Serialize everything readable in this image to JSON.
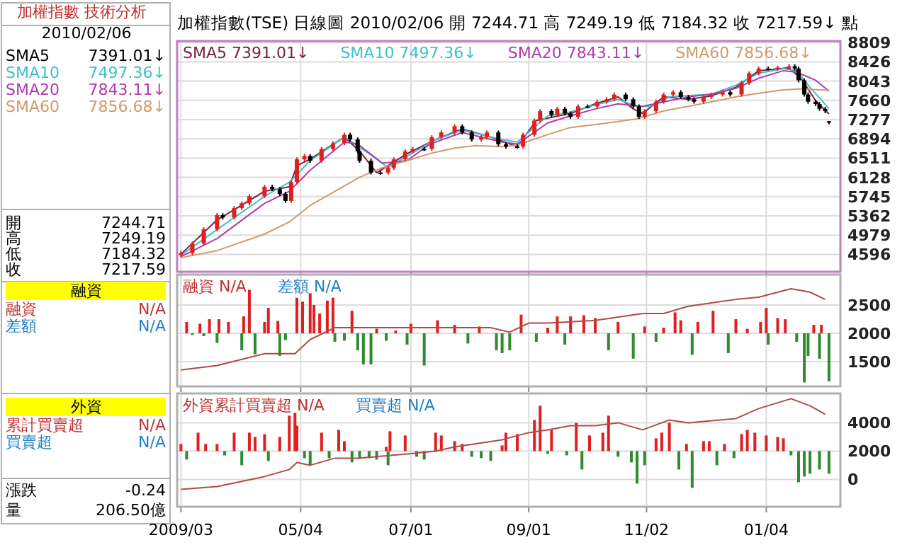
{
  "chart_data": [
    {
      "type": "other",
      "annotations": [
        "加權指數 技術分析",
        "2010/02/06",
        "SMA5",
        "7391.01↓",
        "SMA10",
        "7497.36↓",
        "SMA20",
        "7843.11↓",
        "SMA60",
        "7856.68↓",
        "開",
        "7244.71",
        "高",
        "7249.19",
        "低",
        "7184.32",
        "收",
        "7217.59",
        "融資",
        "融資",
        "N/A",
        "差額",
        "N/A",
        "外資",
        "累計買賣超",
        "N/A",
        "買賣超",
        "N/A",
        "漲跌",
        "-0.24",
        "量",
        "206.50億"
      ]
    },
    {
      "type": "candlestick",
      "title": "加權指數(TSE) 日線圖 2010/02/06 開 7244.71 高 7249.19 低 7184.32 收 7217.59↓ 點",
      "legend": "top left",
      "grid": true,
      "tick_labels": "y",
      "xlim": [
        "2009-02-28",
        "2010-02-12"
      ],
      "xticks": [
        {
          "value": "2009-03-02",
          "label": null
        },
        {
          "value": "2009-05-04",
          "label": null
        },
        {
          "value": "2009-07-01",
          "label": null
        },
        {
          "value": "2009-09-01",
          "label": null
        },
        {
          "value": "2009-11-02",
          "label": null
        },
        {
          "value": "2010-01-04",
          "label": null
        }
      ],
      "ylim": [
        4250,
        8840
      ],
      "yticks": [
        4596,
        4979,
        5362,
        5745,
        6128,
        6511,
        6894,
        7277,
        7660,
        8043,
        8426,
        8809
      ],
      "x": [
        "2009-03-02",
        "2009-03-08",
        "2009-03-14",
        "2009-03-21",
        "2009-03-24",
        "2009-03-30",
        "2009-04-03",
        "2009-04-07",
        "2009-04-15",
        "2009-04-19",
        "2009-04-23",
        "2009-04-26",
        "2009-04-29",
        "2009-05-02",
        "2009-05-06",
        "2009-05-09",
        "2009-05-15",
        "2009-05-21",
        "2009-05-27",
        "2009-05-30",
        "2009-06-03",
        "2009-06-04",
        "2009-06-10",
        "2009-06-15",
        "2009-06-19",
        "2009-06-22",
        "2009-06-28",
        "2009-07-02",
        "2009-07-08",
        "2009-07-12",
        "2009-07-17",
        "2009-07-24",
        "2009-07-28",
        "2009-08-02",
        "2009-08-07",
        "2009-08-10",
        "2009-08-16",
        "2009-08-20",
        "2009-08-26",
        "2009-08-29",
        "2009-09-04",
        "2009-09-07",
        "2009-09-13",
        "2009-09-16",
        "2009-09-20",
        "2009-09-23",
        "2009-09-27",
        "2009-10-02",
        "2009-10-07",
        "2009-10-12",
        "2009-10-16",
        "2009-10-22",
        "2009-10-26",
        "2009-10-29",
        "2009-11-01",
        "2009-11-07",
        "2009-11-11",
        "2009-11-16",
        "2009-11-20",
        "2009-11-24",
        "2009-11-27",
        "2009-12-02",
        "2009-12-06",
        "2009-12-12",
        "2009-12-16",
        "2009-12-22",
        "2009-12-26",
        "2009-12-31",
        "2010-01-05",
        "2010-01-10",
        "2010-01-16",
        "2010-01-19",
        "2010-01-21",
        "2010-01-24",
        "2010-01-26",
        "2010-01-30",
        "2010-02-01",
        "2010-02-04",
        "2010-02-06"
      ],
      "ohlc": [
        [
          4580,
          4664,
          4540,
          4624
        ],
        [
          4624,
          4852,
          4584,
          4812
        ],
        [
          4812,
          5134,
          4772,
          5094
        ],
        [
          5094,
          5417,
          5054,
          5377
        ],
        [
          5377,
          5417,
          5290,
          5330
        ],
        [
          5330,
          5558,
          5290,
          5518
        ],
        [
          5518,
          5652,
          5478,
          5612
        ],
        [
          5612,
          5793,
          5572,
          5753
        ],
        [
          5753,
          5981,
          5713,
          5941
        ],
        [
          5941,
          5981,
          5854,
          5894
        ],
        [
          5894,
          5934,
          5760,
          5800
        ],
        [
          5800,
          5840,
          5619,
          5659
        ],
        [
          5659,
          6075,
          5619,
          6035
        ],
        [
          6035,
          6526,
          5995,
          6486
        ],
        [
          6486,
          6592,
          6446,
          6552
        ],
        [
          6552,
          6592,
          6418,
          6458
        ],
        [
          6458,
          6733,
          6418,
          6693
        ],
        [
          6693,
          6846,
          6653,
          6806
        ],
        [
          6806,
          7015,
          6766,
          6975
        ],
        [
          6975,
          7015,
          6841,
          6881
        ],
        [
          6881,
          6921,
          6606,
          6646
        ],
        [
          6646,
          6686,
          6418,
          6458
        ],
        [
          6458,
          6498,
          6183,
          6223
        ],
        [
          6223,
          6263,
          6183,
          6223
        ],
        [
          6223,
          6357,
          6183,
          6317
        ],
        [
          6317,
          6526,
          6277,
          6486
        ],
        [
          6486,
          6686,
          6446,
          6646
        ],
        [
          6646,
          6733,
          6606,
          6693
        ],
        [
          6693,
          6733,
          6653,
          6693
        ],
        [
          6693,
          6968,
          6653,
          6928
        ],
        [
          6928,
          7062,
          6888,
          7022
        ],
        [
          7022,
          7185,
          6982,
          7145
        ],
        [
          7145,
          7185,
          6982,
          7022
        ],
        [
          7022,
          7062,
          6841,
          6881
        ],
        [
          6881,
          6968,
          6841,
          6928
        ],
        [
          6928,
          7062,
          6888,
          7022
        ],
        [
          7022,
          7062,
          6747,
          6787
        ],
        [
          6787,
          6827,
          6700,
          6740
        ],
        [
          6740,
          6780,
          6700,
          6740
        ],
        [
          6740,
          7015,
          6700,
          6975
        ],
        [
          6975,
          7297,
          6935,
          7257
        ],
        [
          7257,
          7485,
          7217,
          7445
        ],
        [
          7445,
          7485,
          7330,
          7370
        ],
        [
          7370,
          7532,
          7330,
          7492
        ],
        [
          7492,
          7532,
          7358,
          7398
        ],
        [
          7398,
          7438,
          7293,
          7333
        ],
        [
          7333,
          7579,
          7293,
          7539
        ],
        [
          7539,
          7579,
          7499,
          7539
        ],
        [
          7539,
          7673,
          7499,
          7633
        ],
        [
          7633,
          7721,
          7593,
          7681
        ],
        [
          7681,
          7815,
          7641,
          7775
        ],
        [
          7775,
          7815,
          7641,
          7681
        ],
        [
          7681,
          7721,
          7499,
          7539
        ],
        [
          7539,
          7579,
          7293,
          7333
        ],
        [
          7333,
          7485,
          7293,
          7445
        ],
        [
          7445,
          7673,
          7405,
          7633
        ],
        [
          7633,
          7815,
          7593,
          7775
        ],
        [
          7775,
          7862,
          7735,
          7822
        ],
        [
          7822,
          7862,
          7688,
          7728
        ],
        [
          7728,
          7768,
          7641,
          7681
        ],
        [
          7681,
          7721,
          7593,
          7633
        ],
        [
          7633,
          7768,
          7593,
          7728
        ],
        [
          7728,
          7815,
          7688,
          7775
        ],
        [
          7775,
          7862,
          7735,
          7822
        ],
        [
          7822,
          7862,
          7735,
          7775
        ],
        [
          7775,
          8050,
          7735,
          8010
        ],
        [
          8010,
          8238,
          7970,
          8198
        ],
        [
          8198,
          8332,
          8158,
          8292
        ],
        [
          8292,
          8332,
          8252,
          8292
        ],
        [
          8292,
          8351,
          8252,
          8311
        ],
        [
          8311,
          8379,
          8271,
          8339
        ],
        [
          8339,
          8379,
          8252,
          8292
        ],
        [
          8292,
          8332,
          8017,
          8057
        ],
        [
          8057,
          8097,
          7735,
          7775
        ],
        [
          7775,
          7815,
          7593,
          7633
        ],
        [
          7633,
          7673,
          7546,
          7586
        ],
        [
          7586,
          7626,
          7452,
          7492
        ],
        [
          7492,
          7532,
          7405,
          7445
        ],
        [
          7244.71,
          7249.19,
          7184.32,
          7217.59
        ]
      ],
      "colors": [
        "#e02020",
        "#e02020",
        "#e02020",
        "#e02020",
        "#000000",
        "#e02020",
        "#e02020",
        "#e02020",
        "#e02020",
        "#000000",
        "#000000",
        "#000000",
        "#e02020",
        "#e02020",
        "#e02020",
        "#000000",
        "#e02020",
        "#e02020",
        "#e02020",
        "#000000",
        "#000000",
        "#000000",
        "#000000",
        "#000000",
        "#e02020",
        "#e02020",
        "#e02020",
        "#e02020",
        "#000000",
        "#e02020",
        "#e02020",
        "#e02020",
        "#000000",
        "#000000",
        "#e02020",
        "#e02020",
        "#000000",
        "#000000",
        "#000000",
        "#e02020",
        "#e02020",
        "#e02020",
        "#000000",
        "#e02020",
        "#000000",
        "#000000",
        "#e02020",
        "#000000",
        "#e02020",
        "#e02020",
        "#e02020",
        "#000000",
        "#000000",
        "#000000",
        "#e02020",
        "#e02020",
        "#e02020",
        "#e02020",
        "#000000",
        "#000000",
        "#000000",
        "#e02020",
        "#e02020",
        "#e02020",
        "#000000",
        "#e02020",
        "#e02020",
        "#e02020",
        "#000000",
        "#e02020",
        "#e02020",
        "#000000",
        "#000000",
        "#000000",
        "#000000",
        "#000000",
        "#000000",
        "#000000",
        "#000000"
      ],
      "series": [
        {
          "name": "SMA5 7391.01↓",
          "type": "line",
          "color": "#7a2040",
          "x": [
            "2009-03-02",
            "2009-03-21",
            "2009-04-15",
            "2009-04-28",
            "2009-05-02",
            "2009-05-09",
            "2009-05-27",
            "2009-06-04",
            "2009-06-13",
            "2009-06-29",
            "2009-07-14",
            "2009-07-28",
            "2009-08-12",
            "2009-08-26",
            "2009-09-05",
            "2009-09-23",
            "2009-10-06",
            "2009-10-18",
            "2009-10-26",
            "2009-10-31",
            "2009-11-11",
            "2009-11-24",
            "2009-12-06",
            "2009-12-19",
            "2009-12-31",
            "2010-01-16",
            "2010-01-23",
            "2010-01-30",
            "2010-02-06"
          ],
          "values": [
            4600,
            5280,
            5850,
            5940,
            6360,
            6490,
            6930,
            6650,
            6220,
            6600,
            6880,
            7090,
            6930,
            6740,
            7260,
            7400,
            7590,
            7730,
            7490,
            7400,
            7730,
            7680,
            7750,
            7920,
            8250,
            8310,
            8060,
            7650,
            7391.01
          ]
        },
        {
          "name": "SMA10 7497.36↓",
          "type": "line",
          "color": "#40c0c8",
          "x": [
            "2009-03-02",
            "2009-03-21",
            "2009-04-15",
            "2009-04-28",
            "2009-05-09",
            "2009-05-27",
            "2009-06-09",
            "2009-06-19",
            "2009-06-29",
            "2009-07-14",
            "2009-07-28",
            "2009-08-18",
            "2009-08-26",
            "2009-09-11",
            "2009-09-23",
            "2009-10-06",
            "2009-10-18",
            "2009-10-28",
            "2009-11-04",
            "2009-11-14",
            "2009-12-06",
            "2009-12-19",
            "2009-12-31",
            "2010-01-13",
            "2010-01-20",
            "2010-01-27",
            "2010-02-06"
          ],
          "values": [
            4580,
            5090,
            5750,
            6030,
            6460,
            6930,
            6600,
            6320,
            6550,
            6880,
            7070,
            6880,
            6830,
            7350,
            7430,
            7570,
            7680,
            7540,
            7540,
            7730,
            7780,
            7960,
            8200,
            8290,
            8250,
            7920,
            7497.36
          ]
        },
        {
          "name": "SMA20 7843.11↓",
          "type": "line",
          "color": "#b03cb0",
          "x": [
            "2009-03-02",
            "2009-03-21",
            "2009-04-15",
            "2009-04-28",
            "2009-05-09",
            "2009-05-27",
            "2009-06-03",
            "2009-06-16",
            "2009-06-29",
            "2009-07-11",
            "2009-07-28",
            "2009-08-18",
            "2009-08-26",
            "2009-09-11",
            "2009-09-23",
            "2009-10-06",
            "2009-10-18",
            "2009-10-31",
            "2009-11-11",
            "2009-11-24",
            "2009-12-06",
            "2009-12-19",
            "2009-12-31",
            "2010-01-13",
            "2010-01-20",
            "2010-01-30",
            "2010-02-06"
          ],
          "values": [
            4550,
            4910,
            5610,
            5850,
            6270,
            6830,
            6790,
            6410,
            6460,
            6790,
            7020,
            6830,
            6790,
            7210,
            7350,
            7490,
            7590,
            7540,
            7630,
            7730,
            7780,
            7900,
            8100,
            8250,
            8220,
            8060,
            7843.11
          ]
        },
        {
          "name": "SMA60 7856.68↓",
          "type": "line",
          "color": "#d29a6a",
          "x": [
            "2009-03-02",
            "2009-03-21",
            "2009-04-15",
            "2009-04-28",
            "2009-05-09",
            "2009-05-22",
            "2009-06-04",
            "2009-06-16",
            "2009-06-29",
            "2009-07-11",
            "2009-07-24",
            "2009-08-04",
            "2009-08-18",
            "2009-08-26",
            "2009-09-11",
            "2009-09-23",
            "2009-10-06",
            "2009-10-18",
            "2009-10-28",
            "2009-11-11",
            "2009-11-24",
            "2009-12-06",
            "2009-12-19",
            "2009-12-31",
            "2010-01-13",
            "2010-01-23",
            "2010-02-06"
          ],
          "values": [
            4530,
            4670,
            5000,
            5240,
            5570,
            5850,
            6130,
            6320,
            6460,
            6600,
            6710,
            6760,
            6740,
            6770,
            6980,
            7120,
            7180,
            7240,
            7290,
            7450,
            7540,
            7630,
            7730,
            7800,
            7870,
            7890,
            7856.68
          ]
        }
      ]
    },
    {
      "type": "bar",
      "annotations": [
        "融資 N/A",
        "差額 N/A"
      ],
      "grid": true,
      "tick_labels": "y",
      "xlim": [
        "2009-02-28",
        "2010-02-12"
      ],
      "xticks": [
        {
          "value": "2009-03-02",
          "label": null
        },
        {
          "value": "2009-05-04",
          "label": null
        },
        {
          "value": "2009-07-01",
          "label": null
        },
        {
          "value": "2009-09-01",
          "label": null
        },
        {
          "value": "2009-11-02",
          "label": null
        },
        {
          "value": "2010-01-04",
          "label": null
        }
      ],
      "ylim": [
        1060,
        3040
      ],
      "yticks": [
        1500,
        2000,
        2500
      ],
      "series": [
        {
          "type": "bar",
          "color": "#e02020",
          "x": [
            "2009-03-05",
            "2009-03-12",
            "2009-03-17",
            "2009-03-22",
            "2009-03-27",
            "2009-04-04",
            "2009-04-07",
            "2009-04-15",
            "2009-04-17",
            "2009-04-22",
            "2009-05-02",
            "2009-05-05",
            "2009-05-09",
            "2009-05-11",
            "2009-05-14",
            "2009-05-18",
            "2009-05-21",
            "2009-05-31",
            "2009-06-13",
            "2009-06-23",
            "2009-07-01",
            "2009-07-15",
            "2009-07-24",
            "2009-08-06",
            "2009-08-28",
            "2009-09-11",
            "2009-09-16",
            "2009-09-23",
            "2009-09-30",
            "2009-10-06",
            "2009-10-18",
            "2009-11-01",
            "2009-11-11",
            "2009-11-17",
            "2009-11-20",
            "2009-11-29",
            "2009-12-07",
            "2009-12-19",
            "2009-12-25",
            "2010-01-01",
            "2010-01-04",
            "2010-01-10",
            "2010-01-14",
            "2010-01-29",
            "2010-02-02"
          ],
          "values": [
            200,
            170,
            250,
            250,
            200,
            300,
            770,
            200,
            450,
            220,
            630,
            560,
            710,
            500,
            350,
            580,
            630,
            400,
            80,
            50,
            170,
            230,
            150,
            120,
            330,
            100,
            300,
            300,
            320,
            270,
            200,
            120,
            100,
            370,
            230,
            200,
            400,
            250,
            80,
            200,
            450,
            270,
            250,
            150,
            150
          ],
          "base": [
            2000,
            2000,
            2000,
            2000,
            2000,
            2000,
            2000,
            2000,
            2000,
            2000,
            2000,
            2000,
            2000,
            2000,
            2000,
            2000,
            2000,
            2000,
            2000,
            2000,
            2000,
            2000,
            2000,
            2000,
            2000,
            2000,
            2000,
            2000,
            2000,
            2000,
            2000,
            2000,
            2000,
            2000,
            2000,
            2000,
            2000,
            2000,
            2000,
            2000,
            2000,
            2000,
            2000,
            2000,
            2000
          ]
        },
        {
          "type": "bar",
          "color": "#2e8b2e",
          "x": [
            "2009-03-08",
            "2009-03-14",
            "2009-03-21",
            "2009-04-03",
            "2009-04-10",
            "2009-04-23",
            "2009-04-26",
            "2009-05-22",
            "2009-05-27",
            "2009-06-03",
            "2009-06-06",
            "2009-06-10",
            "2009-06-18",
            "2009-06-29",
            "2009-07-08",
            "2009-07-31",
            "2009-08-15",
            "2009-08-18",
            "2009-08-22",
            "2009-09-05",
            "2009-09-20",
            "2009-10-13",
            "2009-10-26",
            "2009-11-07",
            "2009-11-26",
            "2009-12-15",
            "2010-01-05",
            "2010-01-20",
            "2010-01-24",
            "2010-01-26",
            "2010-02-01",
            "2010-02-06"
          ],
          "values": [
            -30,
            -50,
            -170,
            -300,
            -370,
            -400,
            -120,
            -150,
            -130,
            -300,
            -550,
            -550,
            -130,
            -200,
            -570,
            -180,
            -300,
            -350,
            -300,
            -150,
            -200,
            -300,
            -450,
            -150,
            -380,
            -350,
            -200,
            -150,
            -870,
            -400,
            -450,
            -850
          ],
          "base": [
            2000,
            2000,
            2000,
            2000,
            2000,
            2000,
            2000,
            2000,
            2000,
            2000,
            2000,
            2000,
            2000,
            2000,
            2000,
            2000,
            2000,
            2000,
            2000,
            2000,
            2000,
            2000,
            2000,
            2000,
            2000,
            2000,
            2000,
            2000,
            2000,
            2000,
            2000,
            2000
          ]
        },
        {
          "type": "line",
          "color": "#b04a4a",
          "x": [
            "2009-03-02",
            "2009-03-21",
            "2009-04-15",
            "2009-05-01",
            "2009-05-09",
            "2009-05-22",
            "2009-06-04",
            "2009-06-29",
            "2009-07-24",
            "2009-08-12",
            "2009-08-22",
            "2009-09-01",
            "2009-09-11",
            "2009-10-06",
            "2009-10-31",
            "2009-11-11",
            "2009-11-24",
            "2009-12-19",
            "2009-12-31",
            "2010-01-17",
            "2010-01-27",
            "2010-02-04"
          ],
          "values": [
            1350,
            1430,
            1640,
            1640,
            1890,
            2100,
            2100,
            2100,
            2100,
            2100,
            2020,
            2180,
            2180,
            2230,
            2350,
            2350,
            2480,
            2600,
            2640,
            2790,
            2730,
            2600
          ]
        }
      ]
    },
    {
      "type": "bar",
      "annotations": [
        "外資累計買賣超 N/A",
        "買賣超 N/A"
      ],
      "grid": true,
      "xlim": [
        "2009-02-28",
        "2010-02-12"
      ],
      "xticks": [
        {
          "value": "2009-03-02",
          "label": "2009/03"
        },
        {
          "value": "2009-05-04",
          "label": "05/04"
        },
        {
          "value": "2009-07-01",
          "label": "07/01"
        },
        {
          "value": "2009-09-01",
          "label": "09/01"
        },
        {
          "value": "2009-11-02",
          "label": "11/02"
        },
        {
          "value": "2010-01-04",
          "label": "01/04"
        }
      ],
      "ylim": [
        -1930,
        6070
      ],
      "yticks": [
        0,
        2000,
        4000
      ],
      "series": [
        {
          "type": "bar",
          "color": "#e02020",
          "x": [
            "2009-03-02",
            "2009-03-11",
            "2009-03-15",
            "2009-03-21",
            "2009-03-30",
            "2009-04-07",
            "2009-04-10",
            "2009-04-15",
            "2009-04-23",
            "2009-04-28",
            "2009-05-01",
            "2009-05-02",
            "2009-05-15",
            "2009-05-24",
            "2009-05-27",
            "2009-06-18",
            "2009-06-20",
            "2009-06-28",
            "2009-07-14",
            "2009-07-17",
            "2009-07-24",
            "2009-07-28",
            "2009-08-18",
            "2009-08-20",
            "2009-08-26",
            "2009-09-04",
            "2009-09-07",
            "2009-09-13",
            "2009-09-26",
            "2009-10-03",
            "2009-10-10",
            "2009-10-13",
            "2009-11-07",
            "2009-11-10",
            "2009-11-14",
            "2009-11-23",
            "2009-12-02",
            "2009-12-05",
            "2009-12-13",
            "2009-12-22",
            "2009-12-25",
            "2009-12-29",
            "2010-01-04",
            "2010-01-10",
            "2010-01-13"
          ],
          "values": [
            500,
            1300,
            500,
            500,
            1300,
            1300,
            1000,
            1200,
            1000,
            2500,
            2700,
            1800,
            1300,
            1500,
            700,
            300,
            1400,
            1100,
            1300,
            1100,
            700,
            500,
            400,
            1300,
            1200,
            2200,
            3200,
            1500,
            2000,
            1100,
            1300,
            2500,
            900,
            1300,
            2000,
            500,
            700,
            700,
            500,
            1200,
            1500,
            1300,
            1100,
            1000,
            900
          ],
          "base": [
            2000,
            2000,
            2000,
            2000,
            2000,
            2000,
            2000,
            2000,
            2000,
            2000,
            2000,
            2000,
            2000,
            2000,
            2000,
            2000,
            2000,
            2000,
            2000,
            2000,
            2000,
            2000,
            2000,
            2000,
            2000,
            2000,
            2000,
            2000,
            2000,
            2000,
            2000,
            2000,
            2000,
            2000,
            2000,
            2000,
            2000,
            2000,
            2000,
            2000,
            2000,
            2000,
            2000,
            2000,
            2000
          ]
        },
        {
          "type": "bar",
          "color": "#2e8b2e",
          "x": [
            "2009-03-05",
            "2009-03-25",
            "2009-04-03",
            "2009-04-17",
            "2009-05-06",
            "2009-05-09",
            "2009-05-19",
            "2009-05-31",
            "2009-06-04",
            "2009-06-09",
            "2009-06-13",
            "2009-06-19",
            "2009-07-04",
            "2009-07-08",
            "2009-08-02",
            "2009-08-07",
            "2009-08-12",
            "2009-09-11",
            "2009-09-21",
            "2009-09-29",
            "2009-10-18",
            "2009-10-25",
            "2009-10-28",
            "2009-11-01",
            "2009-11-19",
            "2009-11-26",
            "2009-12-09",
            "2009-12-18",
            "2010-01-17",
            "2010-01-21",
            "2010-01-24",
            "2010-01-27",
            "2010-02-01",
            "2010-02-06"
          ],
          "values": [
            -600,
            -300,
            -1000,
            -700,
            -500,
            -1000,
            -500,
            -800,
            -500,
            -500,
            -600,
            -1000,
            -400,
            -600,
            -400,
            -500,
            -700,
            -200,
            -300,
            -1300,
            -400,
            -800,
            -2300,
            -1000,
            -1300,
            -2600,
            -1000,
            -500,
            -300,
            -2200,
            -1800,
            -1600,
            -1300,
            -1600
          ],
          "base": [
            2000,
            2000,
            2000,
            2000,
            2000,
            2000,
            2000,
            2000,
            2000,
            2000,
            2000,
            2000,
            2000,
            2000,
            2000,
            2000,
            2000,
            2000,
            2000,
            2000,
            2000,
            2000,
            2000,
            2000,
            2000,
            2000,
            2000,
            2000,
            2000,
            2000,
            2000,
            2000,
            2000,
            2000
          ]
        },
        {
          "type": "line",
          "color": "#b04a4a",
          "x": [
            "2009-03-02",
            "2009-03-21",
            "2009-04-15",
            "2009-04-28",
            "2009-05-02",
            "2009-05-09",
            "2009-05-22",
            "2009-06-04",
            "2009-06-29",
            "2009-07-14",
            "2009-07-24",
            "2009-08-18",
            "2009-09-01",
            "2009-09-11",
            "2009-09-23",
            "2009-10-06",
            "2009-10-18",
            "2009-10-31",
            "2009-11-14",
            "2009-11-24",
            "2009-12-19",
            "2009-12-31",
            "2010-01-17",
            "2010-01-27",
            "2010-02-04"
          ],
          "values": [
            -700,
            -500,
            200,
            700,
            1200,
            1000,
            1500,
            1500,
            1800,
            2000,
            2300,
            2800,
            3300,
            3500,
            3800,
            3800,
            4000,
            3500,
            4200,
            4000,
            4300,
            5000,
            5700,
            5200,
            4600
          ]
        }
      ]
    }
  ]
}
